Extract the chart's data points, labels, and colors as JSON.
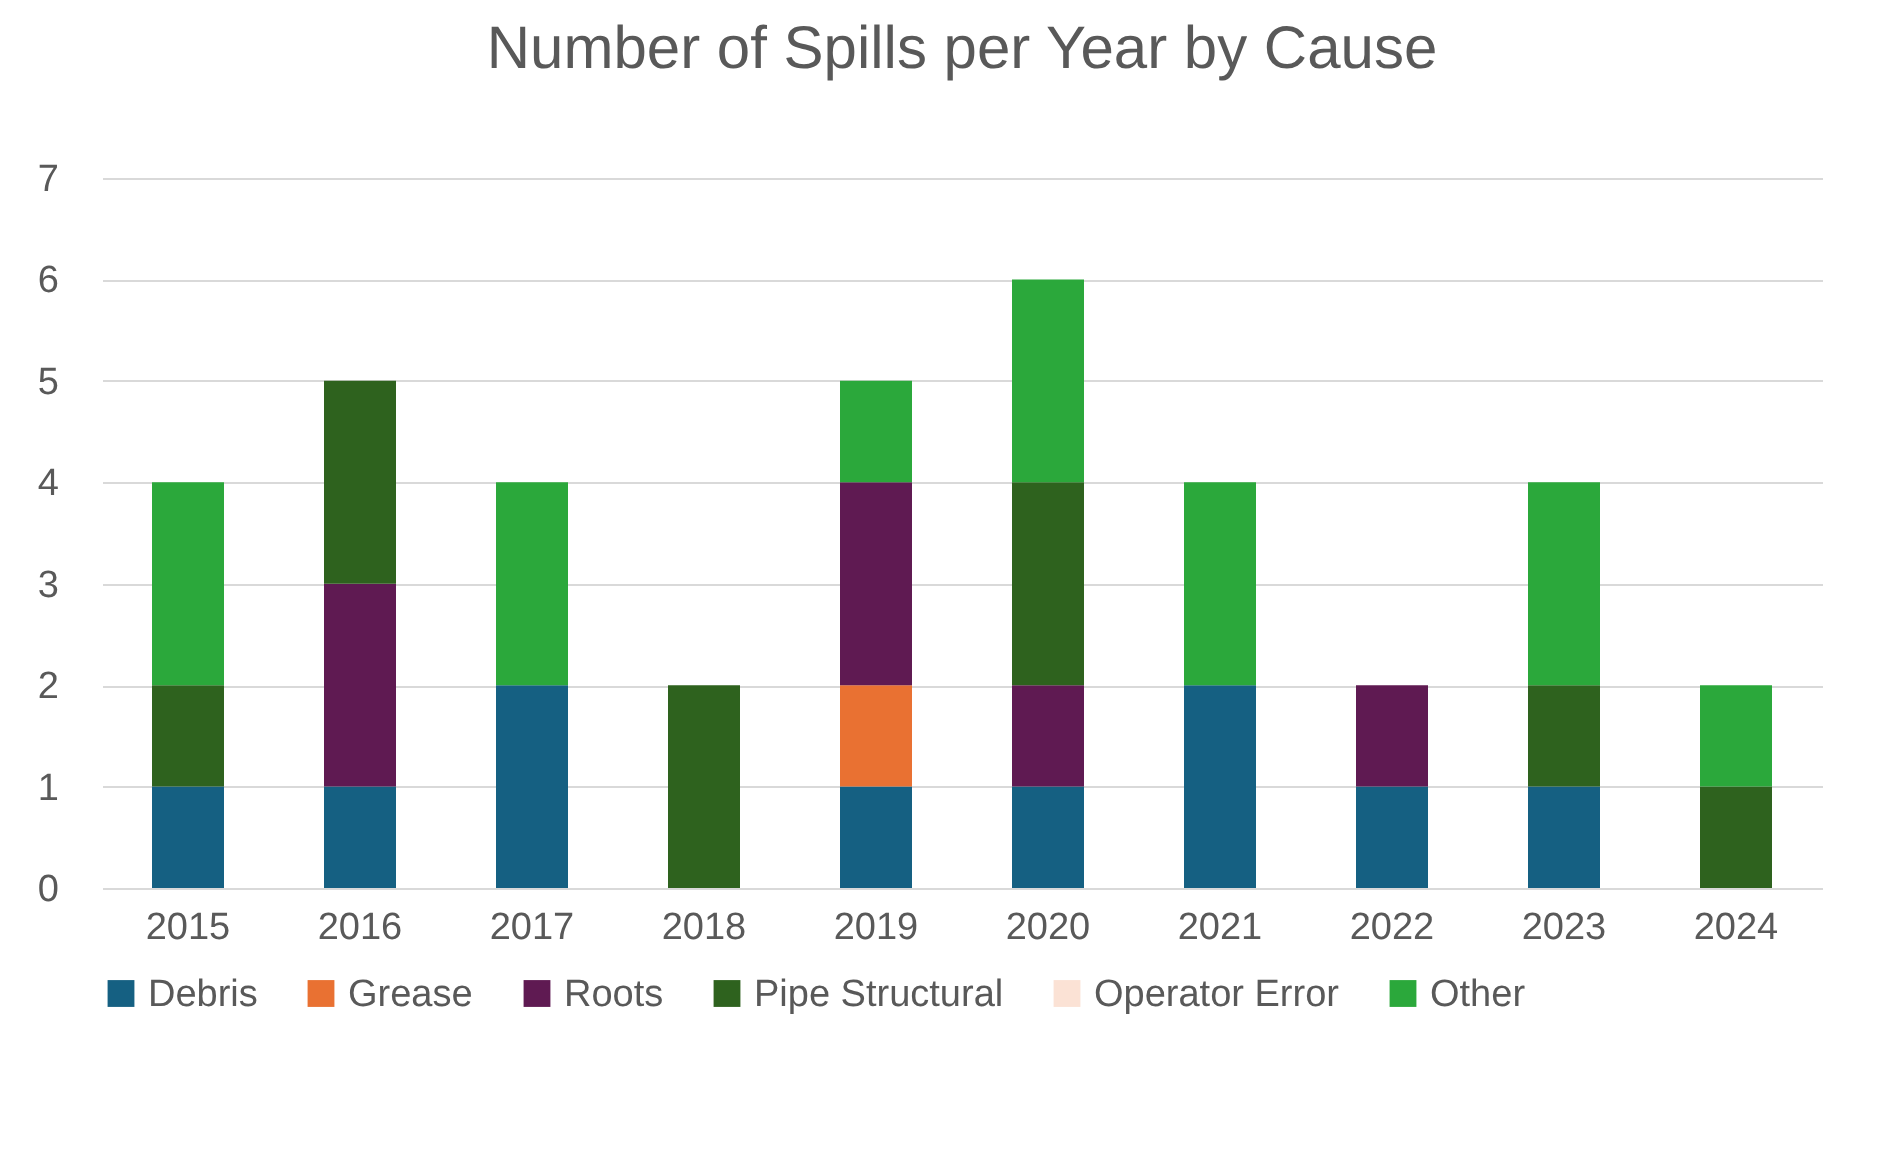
{
  "chart_data": {
    "type": "bar",
    "title": "Number of Spills per Year by Cause",
    "categories": [
      "2015",
      "2016",
      "2017",
      "2018",
      "2019",
      "2020",
      "2021",
      "2022",
      "2023",
      "2024"
    ],
    "stacked": true,
    "ylim": [
      0,
      7
    ],
    "yticks": [
      0,
      1,
      2,
      3,
      4,
      5,
      6,
      7
    ],
    "grid": "y",
    "legend": "bottom",
    "series": [
      {
        "name": "Debris",
        "color": "#156082",
        "values": [
          1,
          1,
          2,
          0,
          1,
          1,
          2,
          1,
          1,
          0
        ]
      },
      {
        "name": "Grease",
        "color": "#e97132",
        "values": [
          0,
          0,
          0,
          0,
          1,
          0,
          0,
          0,
          0,
          0
        ]
      },
      {
        "name": "Roots",
        "color": "#5f1a52",
        "values": [
          0,
          2,
          0,
          0,
          2,
          1,
          0,
          1,
          0,
          0
        ]
      },
      {
        "name": "Pipe Structural",
        "color": "#2e621e",
        "values": [
          1,
          2,
          0,
          2,
          0,
          2,
          0,
          0,
          1,
          1
        ]
      },
      {
        "name": "Operator Error",
        "color": "#fbe2d5",
        "values": [
          0,
          0,
          0,
          0,
          0,
          0,
          0,
          0,
          0,
          0
        ]
      },
      {
        "name": "Other",
        "color": "#2ba83b",
        "values": [
          2,
          0,
          2,
          0,
          1,
          2,
          2,
          0,
          2,
          1
        ]
      }
    ]
  }
}
